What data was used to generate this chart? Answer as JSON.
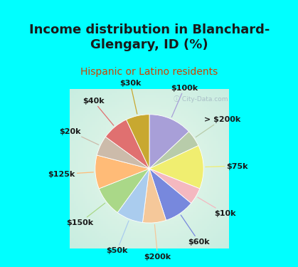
{
  "title": "Income distribution in Blanchard-\nGlengary, ID (%)",
  "subtitle": "Hispanic or Latino residents",
  "bg_cyan": "#00FFFF",
  "watermark": "City-Data.com",
  "slices": [
    {
      "label": "$100k",
      "value": 13,
      "color": "#a89fd8"
    },
    {
      "label": "> $200k",
      "value": 5,
      "color": "#b8ccaa"
    },
    {
      "label": "$75k",
      "value": 13,
      "color": "#f0ee70"
    },
    {
      "label": "$10k",
      "value": 5,
      "color": "#f4b8c0"
    },
    {
      "label": "$60k",
      "value": 9,
      "color": "#7788dd"
    },
    {
      "label": "$200k",
      "value": 7,
      "color": "#f5c89a"
    },
    {
      "label": "$50k",
      "value": 8,
      "color": "#aaccee"
    },
    {
      "label": "$150k",
      "value": 9,
      "color": "#aad888"
    },
    {
      "label": "$125k",
      "value": 10,
      "color": "#ffbb77"
    },
    {
      "label": "$20k",
      "value": 6,
      "color": "#ccbbaa"
    },
    {
      "label": "$40k",
      "value": 8,
      "color": "#e07070"
    },
    {
      "label": "$30k",
      "value": 7,
      "color": "#c8a830"
    }
  ],
  "title_fontsize": 13,
  "subtitle_fontsize": 10,
  "label_fontsize": 8
}
